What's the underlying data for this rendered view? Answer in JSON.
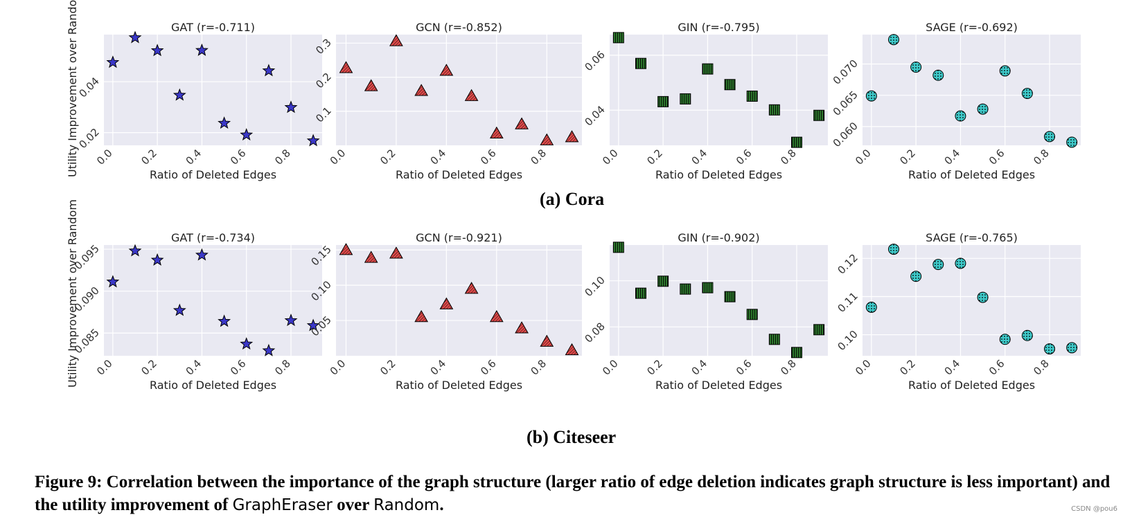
{
  "figure": {
    "row_labels": [
      "(a) Cora",
      "(b) Citeseer"
    ],
    "caption": {
      "part1": "Figure 9:  Correlation between the importance of the graph structure (larger ratio of edge deletion indicates graph structure is less important) and the utility improvement of ",
      "method": "GraphEraser",
      "part2": " over ",
      "baseline": "Random",
      "part3": "."
    },
    "watermark": "CSDN @pou6"
  },
  "chart_data": [
    {
      "type": "scatter",
      "dataset": "Cora",
      "title": "GAT (r=-0.711)",
      "xlabel": "Ratio of Deleted Edges",
      "ylabel": "Utility Improvement over Random",
      "x": [
        0,
        0.1,
        0.2,
        0.3,
        0.4,
        0.5,
        0.6,
        0.7,
        0.8,
        0.9
      ],
      "y": [
        0.0476,
        0.0573,
        0.0522,
        0.0347,
        0.0523,
        0.0237,
        0.0191,
        0.0443,
        0.0299,
        0.0168
      ],
      "xlim": [
        -0.04,
        0.94
      ],
      "ylim": [
        0.015,
        0.0585
      ],
      "yticks": [
        0.02,
        0.04
      ],
      "yticklabels": [
        "0.02",
        "0.04"
      ],
      "xticks": [
        0,
        0.2,
        0.4,
        0.6,
        0.8
      ],
      "xticklabels": [
        "0.0",
        "0.2",
        "0.4",
        "0.6",
        "0.8"
      ],
      "marker": "star",
      "color": "#3b38c8",
      "grid": true
    },
    {
      "type": "scatter",
      "dataset": "Cora",
      "title": "GCN (r=-0.852)",
      "xlabel": "Ratio of Deleted Edges",
      "ylabel": "",
      "x": [
        0,
        0.1,
        0.2,
        0.3,
        0.4,
        0.5,
        0.6,
        0.7,
        0.8,
        0.9
      ],
      "y": [
        0.227,
        0.174,
        0.306,
        0.16,
        0.219,
        0.145,
        0.035,
        0.062,
        0.015,
        0.024
      ],
      "xlim": [
        -0.04,
        0.94
      ],
      "ylim": [
        0.0,
        0.325
      ],
      "yticks": [
        0.1,
        0.2,
        0.3
      ],
      "yticklabels": [
        "0.1",
        "0.2",
        "0.3"
      ],
      "xticks": [
        0,
        0.2,
        0.4,
        0.6,
        0.8
      ],
      "xticklabels": [
        "0.0",
        "0.2",
        "0.4",
        "0.6",
        "0.8"
      ],
      "marker": "triangle",
      "color": "#e04a4a",
      "grid": true
    },
    {
      "type": "scatter",
      "dataset": "Cora",
      "title": "GIN (r=-0.795)",
      "xlabel": "Ratio of Deleted Edges",
      "ylabel": "",
      "x": [
        0,
        0.1,
        0.2,
        0.3,
        0.4,
        0.5,
        0.6,
        0.7,
        0.8,
        0.9
      ],
      "y": [
        0.0664,
        0.057,
        0.0431,
        0.0441,
        0.055,
        0.0493,
        0.0451,
        0.0401,
        0.0283,
        0.0381
      ],
      "xlim": [
        -0.04,
        0.94
      ],
      "ylim": [
        0.0272,
        0.0675
      ],
      "yticks": [
        0.04,
        0.06
      ],
      "yticklabels": [
        "0.04",
        "0.06"
      ],
      "xticks": [
        0,
        0.2,
        0.4,
        0.6,
        0.8
      ],
      "xticklabels": [
        "0.0",
        "0.2",
        "0.4",
        "0.6",
        "0.8"
      ],
      "marker": "square",
      "color": "#2e7a2e",
      "grid": true
    },
    {
      "type": "scatter",
      "dataset": "Cora",
      "title": "SAGE (r=-0.692)",
      "xlabel": "Ratio of Deleted Edges",
      "ylabel": "",
      "x": [
        0,
        0.1,
        0.2,
        0.3,
        0.4,
        0.5,
        0.6,
        0.7,
        0.8,
        0.9
      ],
      "y": [
        0.0649,
        0.0739,
        0.0695,
        0.0682,
        0.0617,
        0.0628,
        0.0689,
        0.0653,
        0.0584,
        0.0575
      ],
      "xlim": [
        -0.04,
        0.94
      ],
      "ylim": [
        0.057,
        0.0747
      ],
      "yticks": [
        0.06,
        0.065,
        0.07
      ],
      "yticklabels": [
        "0.060",
        "0.065",
        "0.070"
      ],
      "xticks": [
        0,
        0.2,
        0.4,
        0.6,
        0.8
      ],
      "xticklabels": [
        "0.0",
        "0.2",
        "0.4",
        "0.6",
        "0.8"
      ],
      "marker": "circle",
      "color": "#3ec9c9",
      "grid": true
    },
    {
      "type": "scatter",
      "dataset": "Citeseer",
      "title": "GAT (r=-0.734)",
      "xlabel": "Ratio of Deleted Edges",
      "ylabel": "Utility Improvement over Random",
      "x": [
        0,
        0.1,
        0.2,
        0.3,
        0.4,
        0.5,
        0.6,
        0.7,
        0.8,
        0.9
      ],
      "y": [
        0.0911,
        0.0948,
        0.0937,
        0.0877,
        0.0943,
        0.0864,
        0.0837,
        0.0829,
        0.0865,
        0.0859
      ],
      "xlim": [
        -0.04,
        0.94
      ],
      "ylim": [
        0.0823,
        0.0955
      ],
      "yticks": [
        0.085,
        0.09,
        0.095
      ],
      "yticklabels": [
        "0.085",
        "0.090",
        "0.095"
      ],
      "xticks": [
        0,
        0.2,
        0.4,
        0.6,
        0.8
      ],
      "xticklabels": [
        "0.0",
        "0.2",
        "0.4",
        "0.6",
        "0.8"
      ],
      "marker": "star",
      "color": "#3b38c8",
      "grid": true
    },
    {
      "type": "scatter",
      "dataset": "Citeseer",
      "title": "GCN (r=-0.921)",
      "xlabel": "Ratio of Deleted Edges",
      "ylabel": "",
      "x": [
        0,
        0.1,
        0.2,
        0.3,
        0.4,
        0.5,
        0.6,
        0.7,
        0.8,
        0.9
      ],
      "y": [
        0.15,
        0.139,
        0.145,
        0.055,
        0.073,
        0.095,
        0.055,
        0.039,
        0.02,
        0.008
      ],
      "xlim": [
        -0.04,
        0.94
      ],
      "ylim": [
        0.0,
        0.157
      ],
      "yticks": [
        0.05,
        0.1,
        0.15
      ],
      "yticklabels": [
        "0.05",
        "0.10",
        "0.15"
      ],
      "xticks": [
        0,
        0.2,
        0.4,
        0.6,
        0.8
      ],
      "xticklabels": [
        "0.0",
        "0.2",
        "0.4",
        "0.6",
        "0.8"
      ],
      "marker": "triangle",
      "color": "#e04a4a",
      "grid": true
    },
    {
      "type": "scatter",
      "dataset": "Citeseer",
      "title": "GIN (r=-0.902)",
      "xlabel": "Ratio of Deleted Edges",
      "ylabel": "",
      "x": [
        0,
        0.1,
        0.2,
        0.3,
        0.4,
        0.5,
        0.6,
        0.7,
        0.8,
        0.9
      ],
      "y": [
        0.1145,
        0.0946,
        0.0998,
        0.0964,
        0.097,
        0.0931,
        0.0854,
        0.0746,
        0.0689,
        0.0788
      ],
      "xlim": [
        -0.04,
        0.94
      ],
      "ylim": [
        0.0675,
        0.1155
      ],
      "yticks": [
        0.08,
        0.1
      ],
      "yticklabels": [
        "0.08",
        "0.10"
      ],
      "xticks": [
        0,
        0.2,
        0.4,
        0.6,
        0.8
      ],
      "xticklabels": [
        "0.0",
        "0.2",
        "0.4",
        "0.6",
        "0.8"
      ],
      "marker": "square",
      "color": "#2e7a2e",
      "grid": true
    },
    {
      "type": "scatter",
      "dataset": "Citeseer",
      "title": "SAGE (r=-0.765)",
      "xlabel": "Ratio of Deleted Edges",
      "ylabel": "",
      "x": [
        0,
        0.1,
        0.2,
        0.3,
        0.4,
        0.5,
        0.6,
        0.7,
        0.8,
        0.9
      ],
      "y": [
        0.1072,
        0.1224,
        0.1153,
        0.1184,
        0.1187,
        0.1098,
        0.0988,
        0.0998,
        0.0963,
        0.0966
      ],
      "xlim": [
        -0.04,
        0.94
      ],
      "ylim": [
        0.0945,
        0.1235
      ],
      "yticks": [
        0.1,
        0.11,
        0.12
      ],
      "yticklabels": [
        "0.10",
        "0.11",
        "0.12"
      ],
      "xticks": [
        0,
        0.2,
        0.4,
        0.6,
        0.8
      ],
      "xticklabels": [
        "0.0",
        "0.2",
        "0.4",
        "0.6",
        "0.8"
      ],
      "marker": "circle",
      "color": "#3ec9c9",
      "grid": true
    }
  ]
}
